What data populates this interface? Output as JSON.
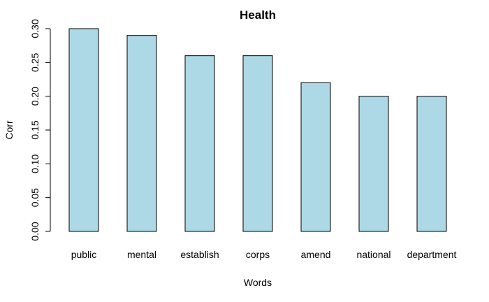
{
  "chart_data": {
    "type": "bar",
    "title": "Health",
    "xlabel": "Words",
    "ylabel": "Corr",
    "categories": [
      "public",
      "mental",
      "establish",
      "corps",
      "amend",
      "national",
      "department"
    ],
    "values": [
      0.3,
      0.29,
      0.26,
      0.26,
      0.22,
      0.2,
      0.2
    ],
    "ylim": [
      0,
      0.3
    ],
    "yticks": [
      "0.00",
      "0.05",
      "0.10",
      "0.15",
      "0.20",
      "0.25",
      "0.30"
    ],
    "bar_color": "#ADD8E6",
    "bar_border_color": "#000000",
    "grid": false,
    "legend": "none"
  }
}
